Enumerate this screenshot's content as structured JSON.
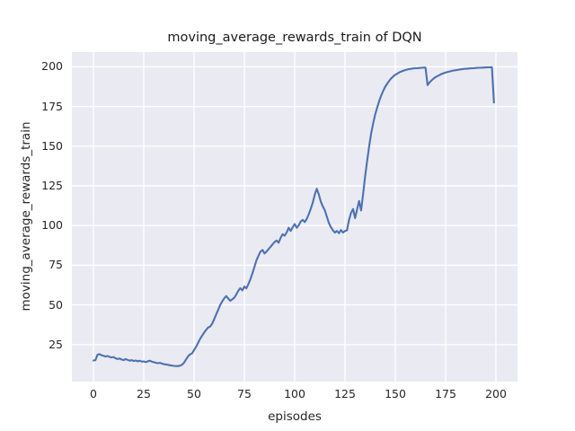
{
  "chart_data": {
    "type": "line",
    "title": "moving_average_rewards_train of DQN",
    "xlabel": "episodes",
    "ylabel": "moving_average_rewards_train",
    "xticks": [
      0,
      25,
      50,
      75,
      100,
      125,
      150,
      175,
      200
    ],
    "yticks": [
      25,
      50,
      75,
      100,
      125,
      150,
      175,
      200
    ],
    "xlim": [
      -10.7,
      210.7
    ],
    "ylim": [
      1.7,
      209.3
    ],
    "grid": true,
    "x": {
      "start": 0,
      "step": 1
    },
    "series": [
      {
        "name": "moving_average_rewards_train",
        "color": "#4c72b0",
        "values": [
          15.0,
          15.2,
          18.6,
          19.0,
          18.4,
          18.0,
          17.5,
          17.9,
          17.3,
          16.9,
          17.2,
          16.4,
          15.9,
          16.3,
          15.6,
          15.3,
          15.9,
          15.4,
          14.9,
          15.2,
          14.7,
          15.0,
          14.5,
          14.8,
          14.3,
          14.4,
          14.0,
          14.5,
          14.9,
          14.3,
          13.9,
          13.6,
          13.3,
          13.5,
          13.1,
          12.7,
          12.5,
          12.3,
          12.0,
          11.8,
          11.6,
          11.5,
          11.5,
          11.7,
          12.3,
          13.6,
          15.6,
          17.6,
          18.9,
          19.4,
          21.6,
          23.6,
          26.1,
          28.6,
          30.6,
          32.6,
          34.3,
          35.8,
          36.4,
          38.2,
          41.0,
          44.0,
          47.0,
          50.0,
          52.2,
          54.2,
          55.6,
          54.0,
          52.6,
          53.6,
          54.6,
          56.6,
          59.0,
          60.6,
          59.2,
          61.6,
          60.4,
          63.2,
          66.2,
          70.0,
          74.0,
          78.0,
          81.0,
          83.6,
          84.6,
          82.4,
          83.6,
          85.2,
          86.6,
          88.2,
          89.6,
          90.6,
          89.2,
          92.2,
          94.6,
          93.6,
          95.6,
          98.6,
          96.6,
          99.0,
          101.0,
          98.6,
          100.2,
          102.6,
          103.6,
          102.2,
          104.2,
          107.2,
          110.6,
          114.6,
          119.6,
          123.2,
          119.6,
          115.0,
          112.0,
          109.6,
          105.6,
          101.6,
          99.0,
          97.0,
          95.6,
          96.6,
          95.2,
          97.2,
          95.6,
          96.6,
          97.0,
          103.6,
          108.0,
          110.4,
          104.7,
          110.0,
          115.5,
          109.5,
          120.0,
          131.0,
          141.0,
          150.0,
          158.0,
          164.5,
          170.0,
          174.5,
          178.5,
          182.0,
          185.0,
          187.5,
          189.5,
          191.3,
          192.8,
          194.0,
          195.0,
          195.8,
          196.5,
          197.1,
          197.6,
          198.0,
          198.3,
          198.6,
          198.8,
          199.0,
          199.1,
          199.2,
          199.3,
          199.4,
          199.5,
          199.5,
          188.5,
          190.2,
          191.5,
          192.6,
          193.5,
          194.2,
          194.9,
          195.5,
          196.0,
          196.4,
          196.8,
          197.1,
          197.4,
          197.7,
          197.9,
          198.1,
          198.3,
          198.5,
          198.7,
          198.8,
          198.9,
          199.0,
          199.1,
          199.2,
          199.3,
          199.4,
          199.4,
          199.5,
          199.5,
          199.6,
          199.7,
          199.7,
          199.8,
          177.5
        ]
      }
    ],
    "colors": {
      "line": "#4c72b0",
      "plot_background": "#eaeaf2",
      "grid": "#ffffff",
      "text": "#262626",
      "figure_background": "#ffffff"
    },
    "legend": "none"
  }
}
